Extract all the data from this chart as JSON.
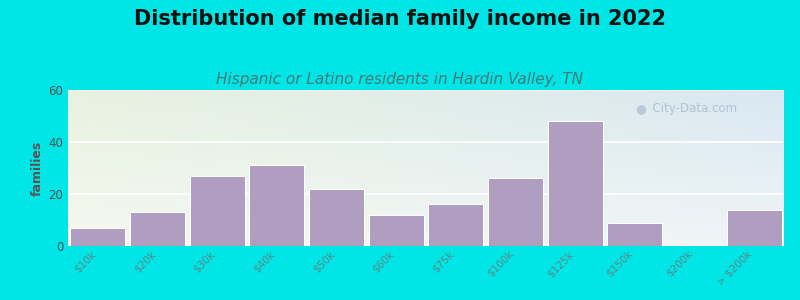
{
  "title": "Distribution of median family income in 2022",
  "subtitle": "Hispanic or Latino residents in Hardin Valley, TN",
  "ylabel": "families",
  "categories": [
    "$10k",
    "$20k",
    "$30k",
    "$40k",
    "$50k",
    "$60k",
    "$75k",
    "$100k",
    "$125k",
    "$150k",
    "$200k",
    "> $200k"
  ],
  "values": [
    7,
    13,
    27,
    31,
    22,
    12,
    16,
    26,
    48,
    9,
    0,
    14
  ],
  "bar_color": "#b09ec0",
  "bar_edge_color": "#ffffff",
  "background_outer": "#00e5e5",
  "bg_color_topleft": "#e8f0e0",
  "bg_color_topright": "#dce8f0",
  "bg_color_bottom": "#f5f8f0",
  "ylim": [
    0,
    60
  ],
  "yticks": [
    0,
    20,
    40,
    60
  ],
  "title_fontsize": 15,
  "subtitle_fontsize": 11,
  "subtitle_color": "#4a7a7a",
  "ylabel_fontsize": 9,
  "tick_label_fontsize": 7.5,
  "tick_label_color": "#5a8a8a",
  "ytick_label_color": "#555555",
  "watermark_text": "City-Data.com",
  "watermark_color": "#aabbcc",
  "watermark_icon_color": "#aabbcc"
}
